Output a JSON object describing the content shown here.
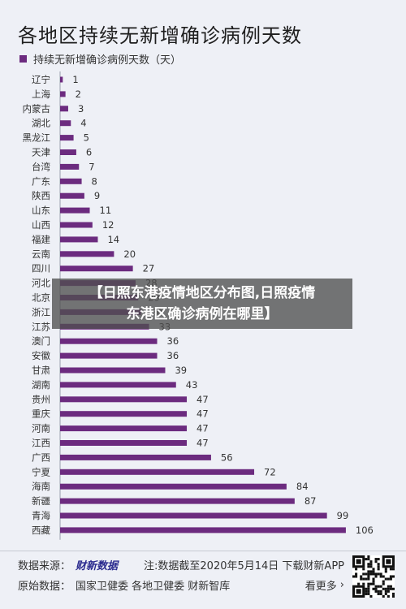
{
  "title": "各地区持续无新增确诊病例天数",
  "banner": {
    "line1": "【日照东港疫情地区分布图,日照疫情",
    "line2": "东港区确诊病例在哪里】"
  },
  "footer": {
    "source_label": "数据来源：",
    "source_logo": "财新数据",
    "note": "注:数据截至2020年5月14日 下载财新APP",
    "origin_label": "原始数据：",
    "origin_list": "国家卫健委  各地卫健委  财新智库",
    "more": "看更多"
  },
  "colors": {
    "bar": "#6c2b7f",
    "background": "#eef0f6"
  },
  "chart_data": {
    "type": "bar",
    "orientation": "horizontal",
    "title": "各地区持续无新增确诊病例天数",
    "legend": "持续无新增确诊病例天数（天）",
    "legend_position": "top-left",
    "categories": [
      "辽宁",
      "上海",
      "内蒙古",
      "湖北",
      "黑龙江",
      "天津",
      "台湾",
      "广东",
      "陕西",
      "山东",
      "山西",
      "福建",
      "云南",
      "四川",
      "河北",
      "北京",
      "浙江",
      "江苏",
      "澳门",
      "安徽",
      "甘肃",
      "湖南",
      "贵州",
      "重庆",
      "河南",
      "江西",
      "广西",
      "宁夏",
      "海南",
      "新疆",
      "青海",
      "西藏"
    ],
    "values": [
      1,
      2,
      3,
      4,
      5,
      6,
      7,
      8,
      9,
      11,
      12,
      14,
      20,
      27,
      28,
      29,
      30,
      33,
      36,
      36,
      39,
      43,
      47,
      47,
      47,
      47,
      56,
      72,
      84,
      87,
      99,
      106
    ],
    "grid": false
  }
}
